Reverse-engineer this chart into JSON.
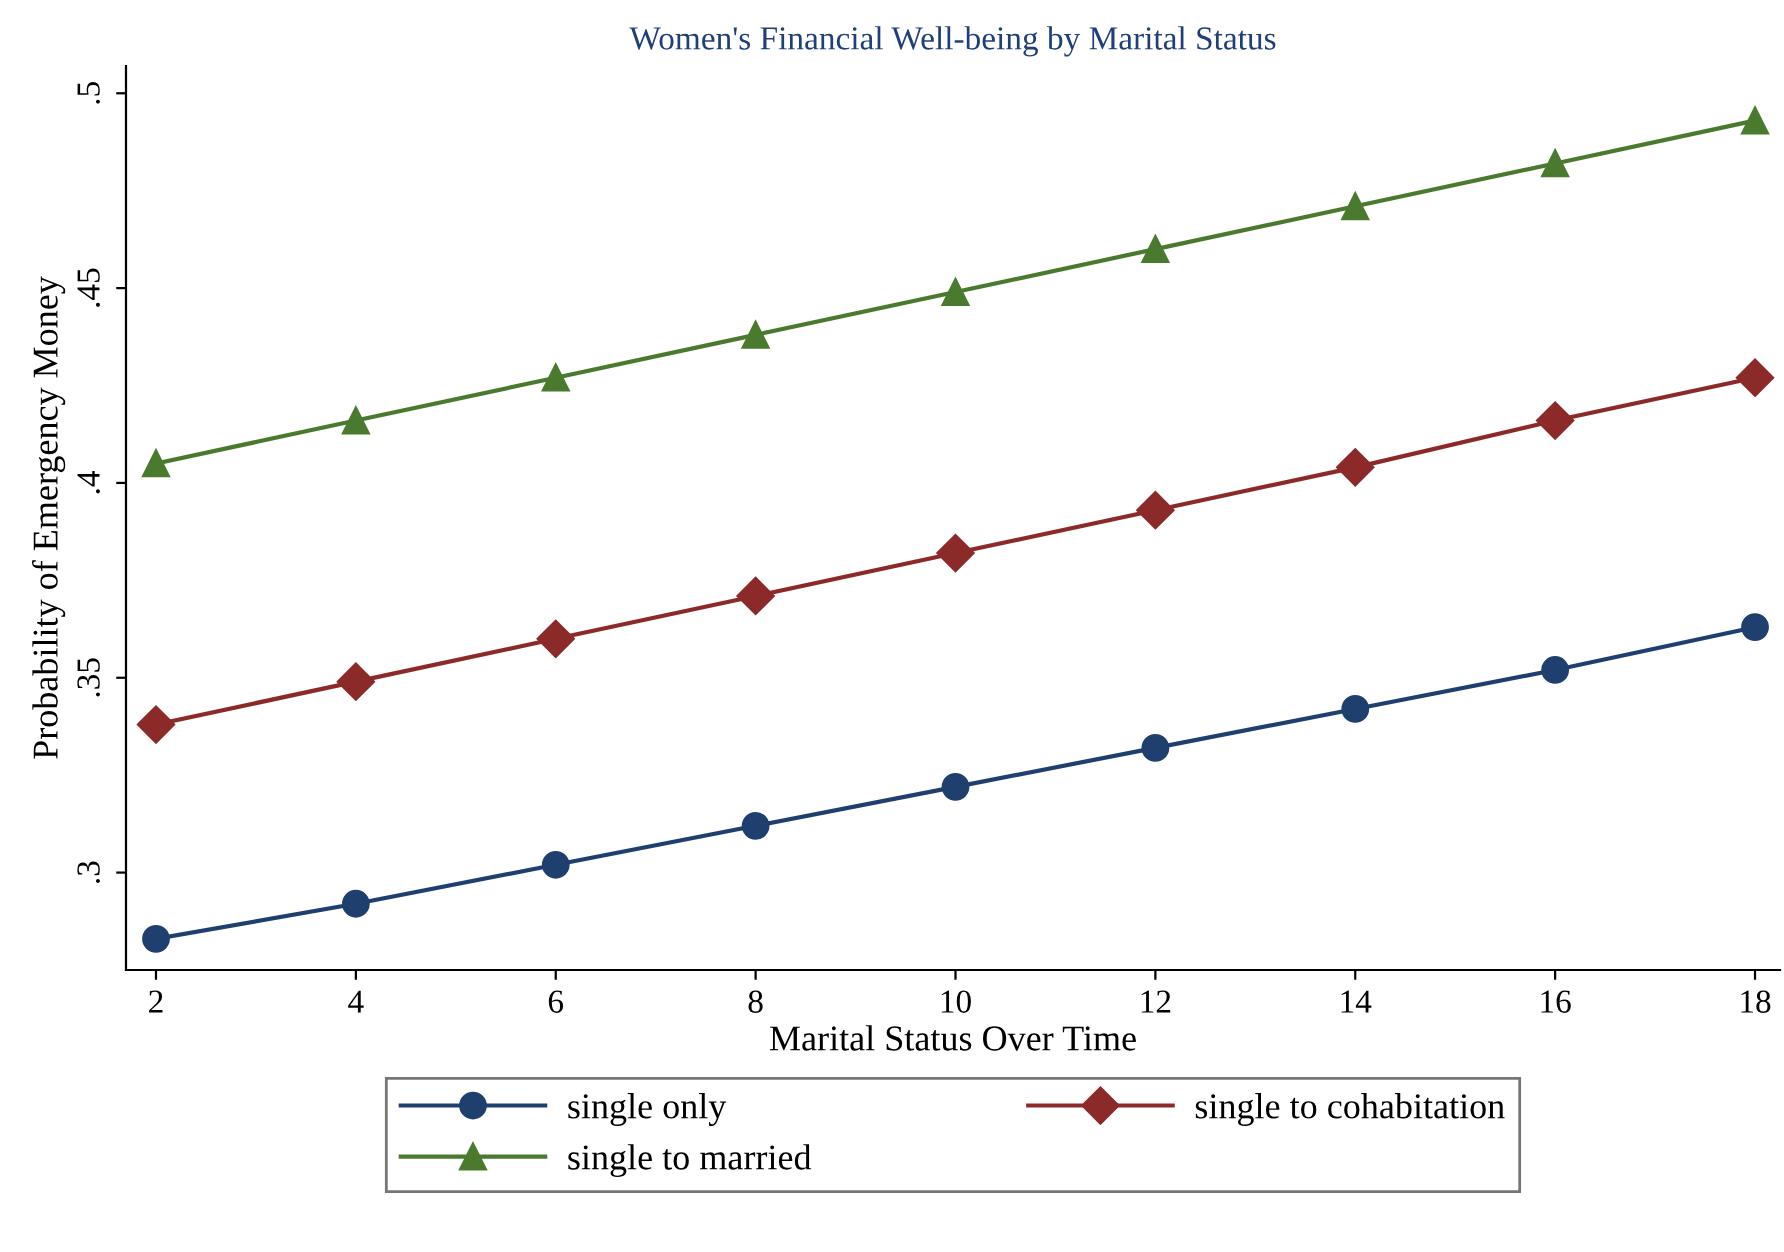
{
  "chart_data": {
    "type": "line",
    "title": "Women's Financial Well-being by Marital Status",
    "xlabel": "Marital Status Over Time",
    "ylabel": "Probability of Emergency Money",
    "x": [
      2,
      4,
      6,
      8,
      10,
      12,
      14,
      16,
      18
    ],
    "series": [
      {
        "name": "single only",
        "color": "#1f3f6e",
        "marker": "circle",
        "values": [
          0.283,
          0.292,
          0.302,
          0.312,
          0.322,
          0.332,
          0.342,
          0.352,
          0.363
        ]
      },
      {
        "name": "single to cohabitation",
        "color": "#8c2a2a",
        "marker": "diamond",
        "values": [
          0.338,
          0.349,
          0.36,
          0.371,
          0.382,
          0.393,
          0.404,
          0.416,
          0.427
        ]
      },
      {
        "name": "single to married",
        "color": "#4a7a2e",
        "marker": "triangle",
        "values": [
          0.405,
          0.416,
          0.427,
          0.438,
          0.449,
          0.46,
          0.471,
          0.482,
          0.493
        ]
      }
    ],
    "xlim": [
      1.7,
      18.25
    ],
    "ylim": [
      0.275,
      0.507
    ],
    "xticks": [
      2,
      4,
      6,
      8,
      10,
      12,
      14,
      16,
      18
    ],
    "yticks": [
      {
        "value": 0.3,
        "label": ".3"
      },
      {
        "value": 0.35,
        "label": ".35"
      },
      {
        "value": 0.4,
        "label": ".4"
      },
      {
        "value": 0.45,
        "label": ".45"
      },
      {
        "value": 0.5,
        "label": ".5"
      }
    ],
    "grid": false,
    "legend": "bottom",
    "line_style": "solid"
  }
}
